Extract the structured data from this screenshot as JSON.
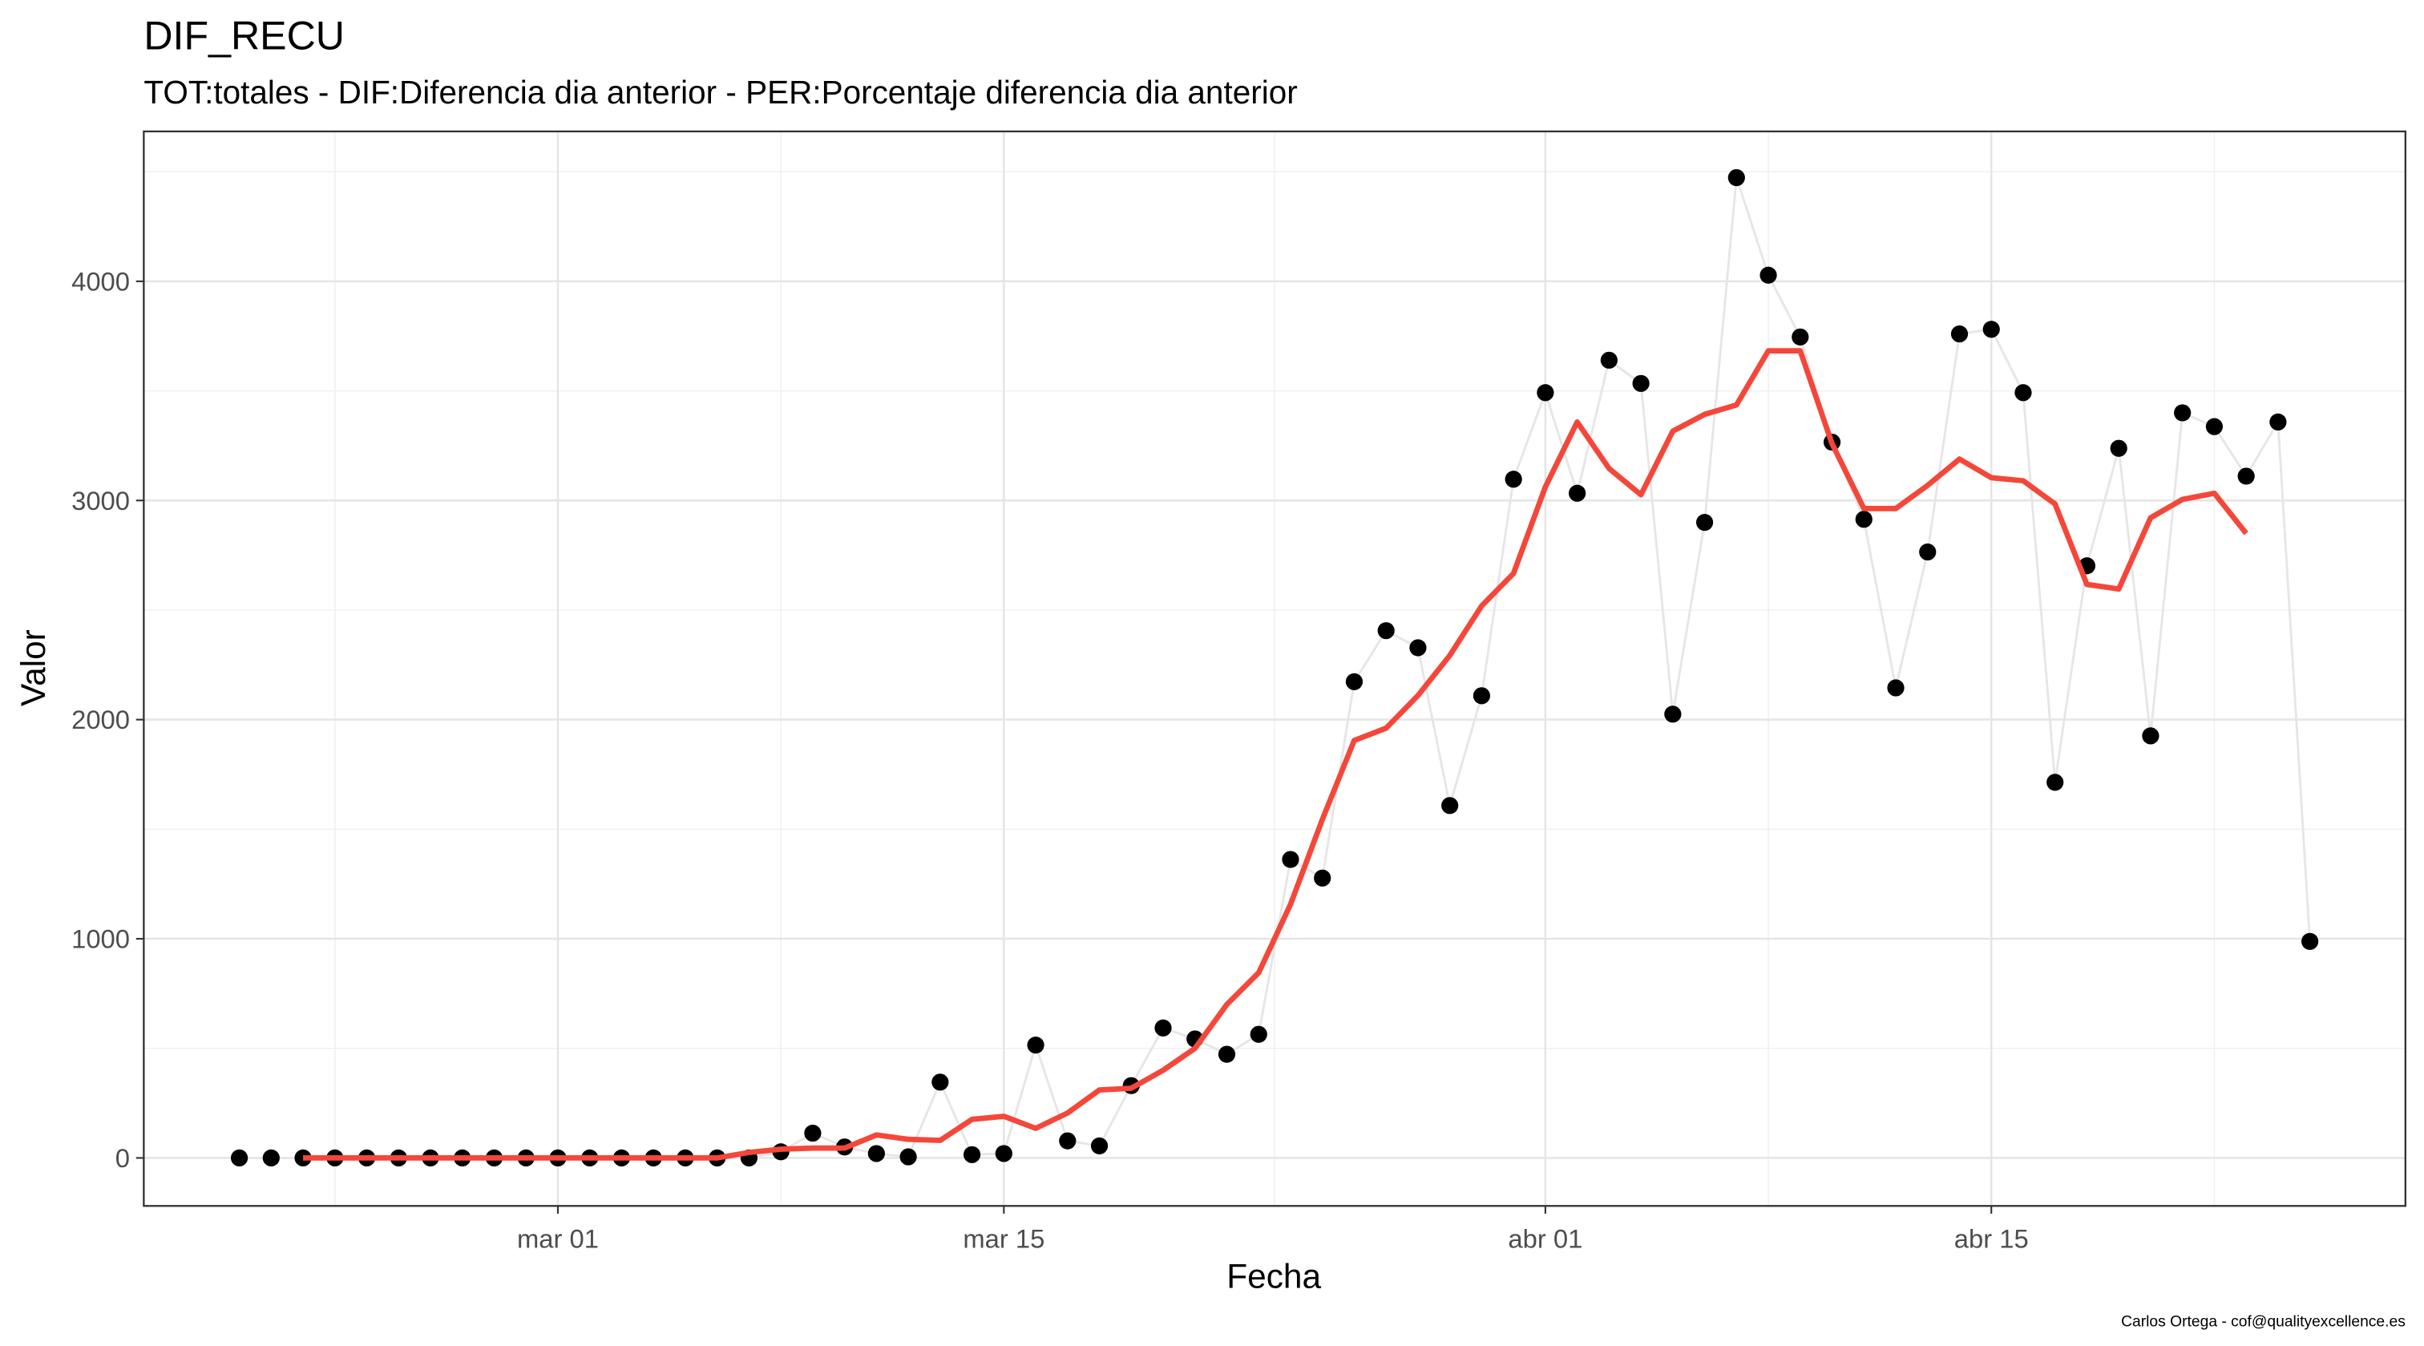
{
  "chart_data": {
    "type": "line",
    "title": "DIF_RECU",
    "subtitle": "TOT:totales - DIF:Diferencia dia anterior - PER:Porcentaje diferencia dia anterior",
    "x_label": "Fecha",
    "y_label": "Valor",
    "caption": "Carlos Ortega - cof@qualityexcellence.es",
    "x": [
      "02-20",
      "02-21",
      "02-22",
      "02-23",
      "02-24",
      "02-25",
      "02-26",
      "02-27",
      "02-28",
      "02-29",
      "03-01",
      "03-02",
      "03-03",
      "03-04",
      "03-05",
      "03-06",
      "03-07",
      "03-08",
      "03-09",
      "03-10",
      "03-11",
      "03-12",
      "03-13",
      "03-14",
      "03-15",
      "03-16",
      "03-17",
      "03-18",
      "03-19",
      "03-20",
      "03-21",
      "03-22",
      "03-23",
      "03-24",
      "03-25",
      "03-26",
      "03-27",
      "03-28",
      "03-29",
      "03-30",
      "03-31",
      "04-01",
      "04-02",
      "04-03",
      "04-04",
      "04-05",
      "04-06",
      "04-07",
      "04-08",
      "04-09",
      "04-10",
      "04-11",
      "04-12",
      "04-13",
      "04-14",
      "04-15",
      "04-16",
      "04-17",
      "04-18",
      "04-19",
      "04-20",
      "04-21",
      "04-22",
      "04-23",
      "04-24",
      "04-25"
    ],
    "series": [
      {
        "color": "#000000",
        "line_color": "#e6e6e6",
        "values": [
          0,
          0,
          0,
          0,
          0,
          0,
          0,
          0,
          0,
          0,
          0,
          0,
          0,
          0,
          0,
          0,
          0,
          28,
          113,
          50,
          20,
          5,
          346,
          15,
          20,
          515,
          78,
          55,
          330,
          593,
          543,
          473,
          564,
          1362,
          1277,
          2173,
          2406,
          2328,
          1608,
          2109,
          3097,
          3492,
          3033,
          3640,
          3534,
          2025,
          2900,
          4473,
          4028,
          3746,
          3266,
          2914,
          2145,
          2765,
          3760,
          3781,
          3492,
          1714,
          2702,
          3238,
          1926,
          3400,
          3337,
          3111,
          3358,
          988
        ]
      },
      {
        "color": "#f4473a",
        "values": [
          null,
          null,
          0,
          0,
          0,
          0,
          0,
          0,
          0,
          0,
          0,
          0,
          0,
          0,
          0,
          0,
          25,
          40,
          45,
          45,
          105,
          85,
          80,
          176,
          190,
          135,
          205,
          310,
          318,
          400,
          500,
          700,
          845,
          1157,
          1545,
          1905,
          1961,
          2110,
          2293,
          2519,
          2667,
          3062,
          3358,
          3146,
          3026,
          3316,
          3393,
          3436,
          3683,
          3683,
          3259,
          2963,
          2963,
          3069,
          3189,
          3104,
          3090,
          2984,
          2617,
          2596,
          2921,
          3005,
          3033,
          2850,
          null,
          null
        ]
      }
    ],
    "xlim": [
      "02-17",
      "04-28"
    ],
    "xticks": [
      {
        "value": "03-01",
        "label": "mar 01"
      },
      {
        "value": "03-15",
        "label": "mar 15"
      },
      {
        "value": "04-01",
        "label": "abr 01"
      },
      {
        "value": "04-15",
        "label": "abr 15"
      }
    ],
    "ylim": [
      -219,
      4684
    ],
    "yticks": [
      0,
      1000,
      2000,
      3000,
      4000
    ],
    "grid": true
  }
}
